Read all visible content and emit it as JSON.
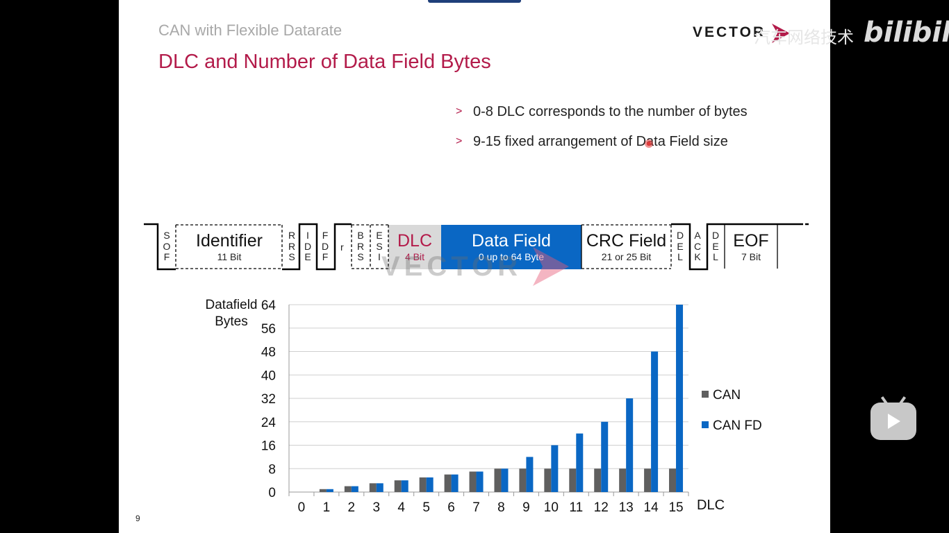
{
  "header": {
    "subtitle": "CAN with Flexible Datarate",
    "title": "DLC and Number of Data Field Bytes",
    "logo_text": "VECTOR",
    "logo_arrow_icon": "chevron-arrow-icon"
  },
  "watermark": {
    "text": "汽车网络技术",
    "brand": "bilibili",
    "diagram_text": "VECTOR"
  },
  "bullets": [
    {
      "mark": ">",
      "text": "0-8 DLC corresponds to the number of bytes"
    },
    {
      "mark": ">",
      "text": "9-15 fixed arrangement of Data Field size"
    }
  ],
  "frame": {
    "sof": [
      "S",
      "O",
      "F"
    ],
    "identifier": {
      "name": "Identifier",
      "bits": "11 Bit"
    },
    "rrs": [
      "R",
      "R",
      "S"
    ],
    "ide": [
      "I",
      "D",
      "E"
    ],
    "fdf": [
      "F",
      "D",
      "F"
    ],
    "r": "r",
    "brs": [
      "B",
      "R",
      "S"
    ],
    "esi": [
      "E",
      "S",
      "I"
    ],
    "dlc": {
      "name": "DLC",
      "bits": "4 Bit"
    },
    "data": {
      "name": "Data Field",
      "bits": "0 up to 64 Byte"
    },
    "crc": {
      "name": "CRC Field",
      "bits": "21 or 25 Bit"
    },
    "del1": [
      "D",
      "E",
      "L"
    ],
    "ack": [
      "A",
      "C",
      "K"
    ],
    "del2": [
      "D",
      "E",
      "L"
    ],
    "eof": {
      "name": "EOF",
      "bits": "7 Bit"
    }
  },
  "colors": {
    "accent": "#b31b4a",
    "can": "#5f5f5f",
    "canfd": "#0a67c4",
    "dlc_box": "#d9d9d9"
  },
  "chart_data": {
    "type": "bar",
    "ylabel": "Datafield Bytes",
    "xlabel": "DLC",
    "ylim": [
      0,
      64
    ],
    "yticks": [
      0,
      8,
      16,
      24,
      32,
      40,
      48,
      56,
      64
    ],
    "grid": true,
    "legend": "right",
    "categories": [
      "0",
      "1",
      "2",
      "3",
      "4",
      "5",
      "6",
      "7",
      "8",
      "9",
      "10",
      "11",
      "12",
      "13",
      "14",
      "15"
    ],
    "series": [
      {
        "name": "CAN",
        "values": [
          0,
          1,
          2,
          3,
          4,
          5,
          6,
          7,
          8,
          8,
          8,
          8,
          8,
          8,
          8,
          8
        ]
      },
      {
        "name": "CAN FD",
        "values": [
          0,
          1,
          2,
          3,
          4,
          5,
          6,
          7,
          8,
          12,
          16,
          20,
          24,
          32,
          48,
          64
        ]
      }
    ]
  },
  "page_number": "9"
}
